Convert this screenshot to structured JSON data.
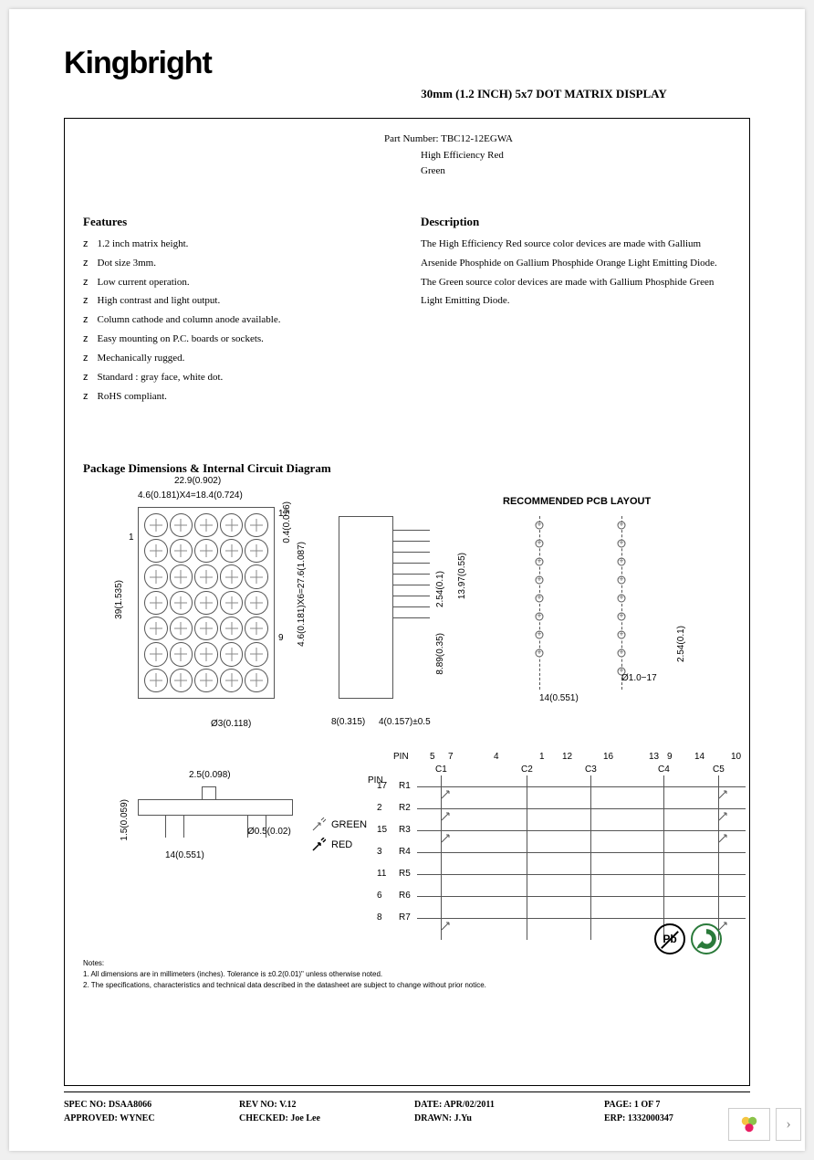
{
  "brand": "Kingbright",
  "title": "30mm (1.2 INCH) 5x7 DOT MATRIX DISPLAY",
  "part": {
    "label": "Part Number: TBC12-12EGWA",
    "line2": "High Efficiency Red",
    "line3": "Green"
  },
  "features": {
    "heading": "Features",
    "items": [
      "1.2 inch matrix height.",
      "Dot size 3mm.",
      "Low current operation.",
      "High contrast and light output.",
      "Column cathode and column anode available.",
      "Easy mounting on P.C. boards or sockets.",
      "Mechanically rugged.",
      "Standard : gray face, white dot.",
      "RoHS compliant."
    ]
  },
  "description": {
    "heading": "Description",
    "text": "The High Efficiency Red source color devices are made with Gallium Arsenide Phosphide on Gallium Phosphide Orange Light Emitting Diode.\nThe Green source color devices are made with Gallium Phosphide Green Light Emitting Diode."
  },
  "diagram": {
    "heading": "Package Dimensions & Internal Circuit Diagram",
    "dims": {
      "top_width": "22.9(0.902)",
      "col_pitch": "4.6(0.181)X4=18.4(0.724)",
      "edge": "0.4(0.016)",
      "height": "39(1.535)",
      "row_pitch": "4.6(0.181)X6=27.6(1.087)",
      "dot_dia": "Ø3(0.118)",
      "side_w": "8(0.315)",
      "side_off": "4(0.157)±0.5",
      "pin_pitch": "2.54(0.1)",
      "pin_span": "13.97(0.55)",
      "pin_offset": "8.89(0.35)",
      "pcb_title": "RECOMMENDED  PCB  LAYOUT",
      "pcb_w": "14(0.551)",
      "pcb_pitch": "2.54(0.1)",
      "pcb_hole": "Ø1.0−17",
      "xsect_notch": "2.5(0.098)",
      "xsect_h": "1.5(0.059)",
      "xsect_pin": "Ø0.5(0.02)",
      "xsect_w": "14(0.551)"
    },
    "matrix_labels": {
      "pin1": "1",
      "pin17": "17",
      "pin9": "9"
    },
    "circuit": {
      "col_pins": [
        "5",
        "7",
        "4",
        "1",
        "12",
        "16",
        "13",
        "9",
        "14",
        "10"
      ],
      "col_labels": [
        "C1",
        "C2",
        "C3",
        "C4",
        "C5"
      ],
      "row_pins": [
        "17",
        "2",
        "15",
        "3",
        "11",
        "6",
        "8"
      ],
      "row_labels": [
        "R1",
        "R2",
        "R3",
        "R4",
        "R5",
        "R6",
        "R7"
      ],
      "pin_word": "PIN"
    },
    "legend": {
      "green": "GREEN",
      "red": "RED"
    }
  },
  "notes": {
    "heading": "Notes:",
    "n1": "1. All dimensions are in millimeters (inches). Tolerance is ±0.2(0.01)\" unless otherwise noted.",
    "n2": "2. The specifications, characteristics and technical data described in the datasheet are subject to change without prior notice."
  },
  "footer": {
    "spec": "SPEC NO: DSAA8066",
    "rev": "REV NO: V.12",
    "date": "DATE: APR/02/2011",
    "page": "PAGE: 1  OF  7",
    "approved": "APPROVED: WYNEC",
    "checked": "CHECKED: Joe Lee",
    "drawn": "DRAWN: J.Yu",
    "erp": "ERP: 1332000347"
  },
  "badges": {
    "pb": "Pb"
  },
  "colors": {
    "accent_green": "#2a7a3a",
    "line": "#555555"
  }
}
